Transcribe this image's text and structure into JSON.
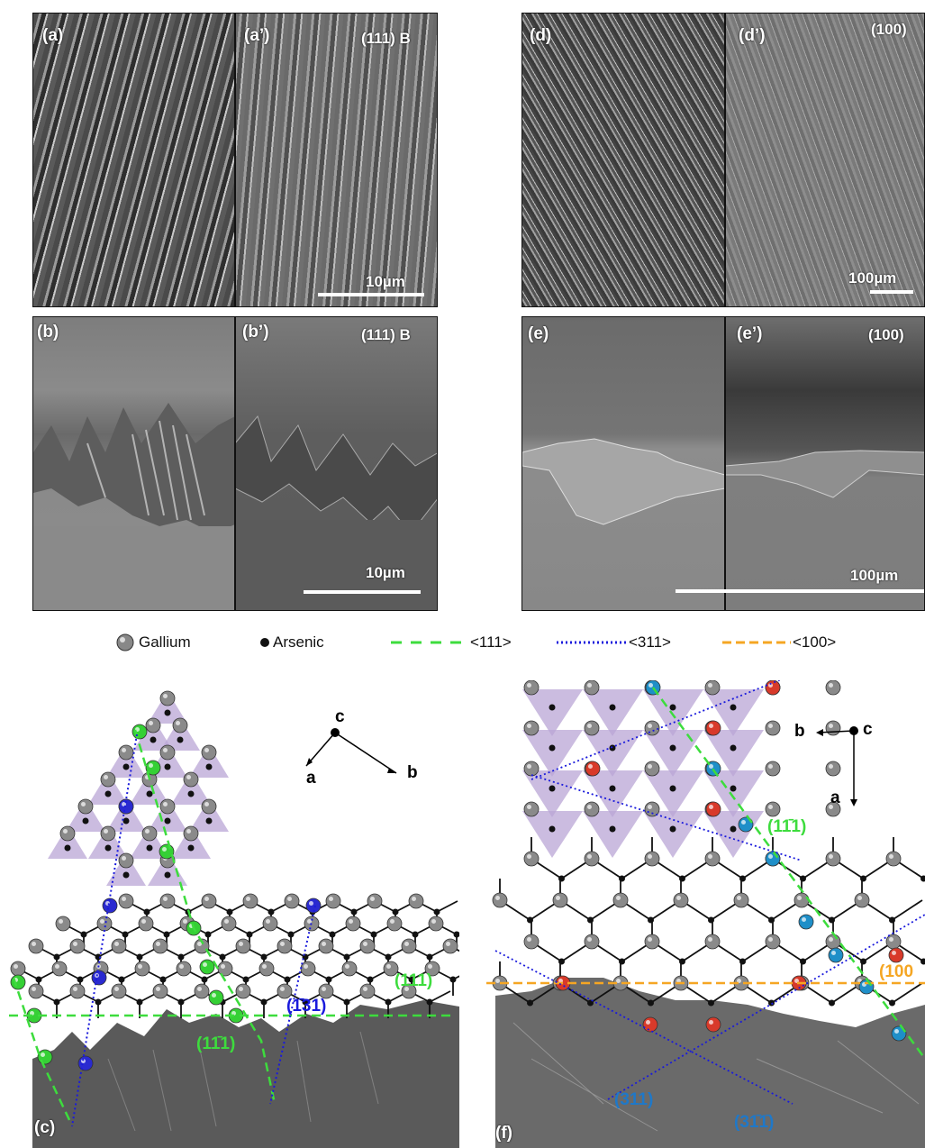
{
  "panels": {
    "a": {
      "label": "(a)"
    },
    "a_prime": {
      "label": "(a’)"
    },
    "orient_111b_top": "(111) B",
    "scale_a": "10µm",
    "b": {
      "label": "(b)"
    },
    "b_prime": {
      "label": "(b’)"
    },
    "orient_111b_bottom": "(111) B",
    "scale_b": "10µm",
    "d": {
      "label": "(d)"
    },
    "d_prime": {
      "label": "(d’)"
    },
    "orient_100_top": "(100)",
    "scale_d": "100µm",
    "e": {
      "label": "(e)"
    },
    "e_prime": {
      "label": "(e’)"
    },
    "orient_100_bottom": "(100)",
    "scale_e": "100µm"
  },
  "legend": {
    "gallium": "Gallium",
    "arsenic": "Arsenic",
    "dir_111": "<111>",
    "dir_311": "<311>",
    "dir_100": "<100>",
    "colors": {
      "green": "#3ddc3d",
      "blue": "#1a1adc",
      "orange": "#f5a623"
    }
  },
  "panel_c": {
    "label": "(c)",
    "axes": {
      "c": "c",
      "a": "a",
      "b": "b"
    },
    "plane_111": "(111)",
    "plane_131": "(1̄31)",
    "plane_1m11": "(11̄1)"
  },
  "panel_f": {
    "label": "(f)",
    "axes": {
      "c": "c",
      "a": "a",
      "b": "b"
    },
    "plane_1m11": "(11̄1)",
    "plane_100": "(100",
    "plane_311": "(311)",
    "plane_31m1": "(31̄1̄)"
  }
}
